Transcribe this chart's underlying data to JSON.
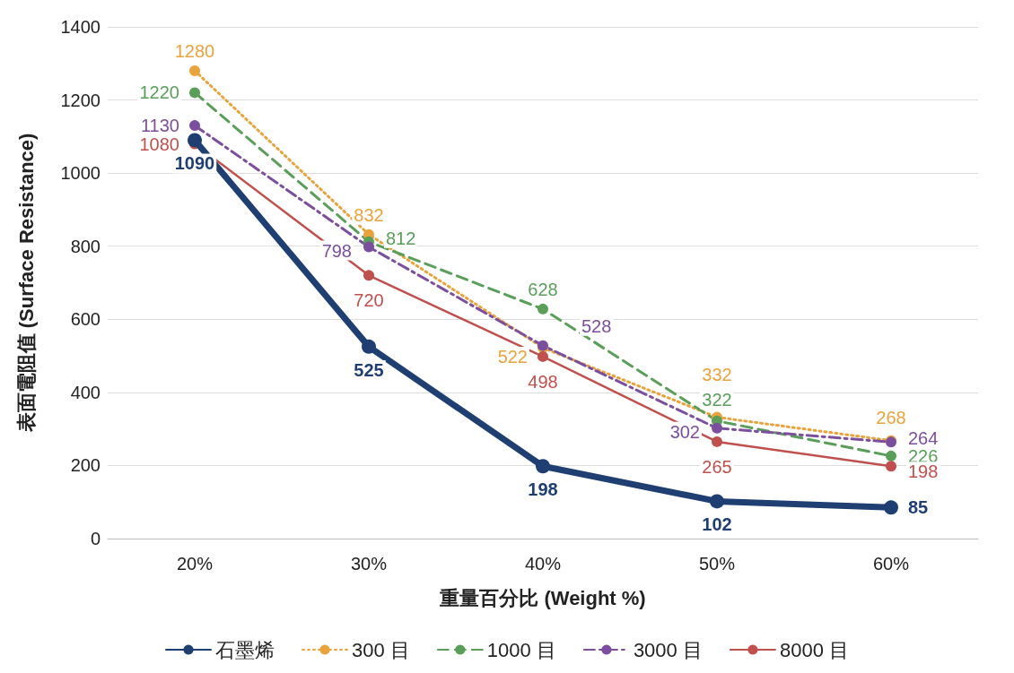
{
  "chart_data": {
    "type": "line",
    "xlabel": "重量百分比 (Weight %)",
    "ylabel": "表面電阻值 (Surface Resistance)",
    "categories": [
      "20%",
      "30%",
      "40%",
      "50%",
      "60%"
    ],
    "series": [
      {
        "name": "石墨烯",
        "color": "#1f3f73",
        "values": [
          1090,
          525,
          198,
          102,
          85
        ],
        "line_style": "solid"
      },
      {
        "name": "300 目",
        "color": "#e8a33d",
        "values": [
          1280,
          832,
          522,
          332,
          268
        ],
        "line_style": "dotted"
      },
      {
        "name": "1000 目",
        "color": "#5a9e5a",
        "values": [
          1220,
          812,
          628,
          322,
          226
        ],
        "line_style": "dashed"
      },
      {
        "name": "3000 目",
        "color": "#7b4f9e",
        "values": [
          1130,
          798,
          528,
          302,
          264
        ],
        "line_style": "dashdot"
      },
      {
        "name": "8000 目",
        "color": "#c0504d",
        "values": [
          1080,
          720,
          498,
          265,
          198
        ],
        "line_style": "solid"
      }
    ],
    "ylim": [
      0,
      1400
    ],
    "yticks": [
      0,
      200,
      400,
      600,
      800,
      1000,
      1200,
      1400
    ],
    "grid": "y",
    "legend": "bottom",
    "marker": "circle",
    "data_labels": true
  }
}
